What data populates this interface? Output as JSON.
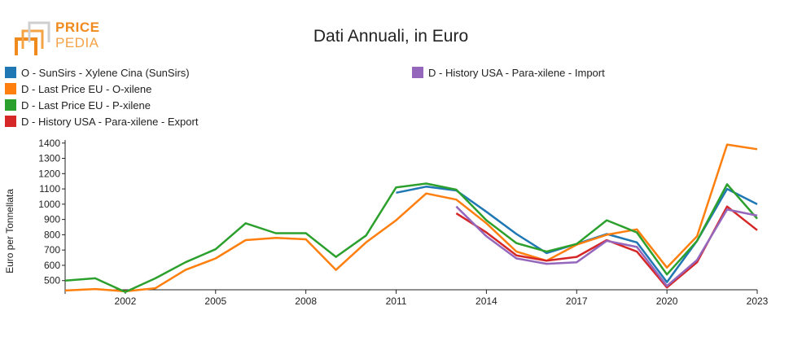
{
  "logo": {
    "line1": "PRICE",
    "line2": "PEDIA"
  },
  "chart_data": {
    "type": "line",
    "title": "Dati Annuali, in Euro",
    "ylabel": "Euro per Tonnellata",
    "xlabel": "",
    "x_ticks": [
      2002,
      2005,
      2008,
      2011,
      2014,
      2017,
      2020,
      2023
    ],
    "y_ticks": [
      500,
      600,
      700,
      800,
      900,
      1000,
      1100,
      1200,
      1300,
      1400
    ],
    "xlim": [
      2000,
      2023
    ],
    "ylim": [
      440,
      1420
    ],
    "legend_position": "top-left",
    "grid": false,
    "series": [
      {
        "name": "O - SunSirs - Xylene Cina (SunSirs)",
        "color": "#1f77b4",
        "x": [
          2011,
          2012,
          2013,
          2014,
          2015,
          2016,
          2017,
          2018,
          2019,
          2020,
          2021,
          2022,
          2023
        ],
        "values": [
          1075,
          1115,
          1090,
          950,
          805,
          680,
          740,
          805,
          750,
          490,
          760,
          1100,
          1000
        ]
      },
      {
        "name": "D - Last Price EU - O-xilene",
        "color": "#ff7f0e",
        "x": [
          2000,
          2001,
          2002,
          2003,
          2004,
          2005,
          2006,
          2007,
          2008,
          2009,
          2010,
          2011,
          2012,
          2013,
          2014,
          2015,
          2016,
          2017,
          2018,
          2019,
          2020,
          2021,
          2022,
          2023
        ],
        "values": [
          435,
          445,
          430,
          450,
          570,
          645,
          765,
          780,
          770,
          570,
          750,
          895,
          1070,
          1030,
          875,
          690,
          630,
          735,
          800,
          835,
          585,
          790,
          1390,
          1360
        ]
      },
      {
        "name": "D - Last Price EU - P-xilene",
        "color": "#2ca02c",
        "x": [
          2000,
          2001,
          2002,
          2003,
          2004,
          2005,
          2006,
          2007,
          2008,
          2009,
          2010,
          2011,
          2012,
          2013,
          2014,
          2015,
          2016,
          2017,
          2018,
          2019,
          2020,
          2021,
          2022,
          2023
        ],
        "values": [
          500,
          515,
          425,
          515,
          620,
          705,
          875,
          810,
          810,
          655,
          795,
          1110,
          1135,
          1095,
          895,
          745,
          690,
          740,
          895,
          815,
          540,
          760,
          1130,
          905
        ]
      },
      {
        "name": "D - History USA - Para-xilene - Export",
        "color": "#d62728",
        "x": [
          2013,
          2014,
          2015,
          2016,
          2017,
          2018,
          2019,
          2020,
          2021,
          2022,
          2023
        ],
        "values": [
          940,
          815,
          665,
          630,
          655,
          765,
          690,
          455,
          620,
          985,
          830
        ]
      },
      {
        "name": "D - History USA - Para-xilene - Import",
        "color": "#9467bd",
        "x": [
          2013,
          2014,
          2015,
          2016,
          2017,
          2018,
          2019,
          2020,
          2021,
          2022,
          2023
        ],
        "values": [
          985,
          790,
          645,
          610,
          620,
          760,
          720,
          465,
          635,
          965,
          925
        ]
      }
    ]
  }
}
